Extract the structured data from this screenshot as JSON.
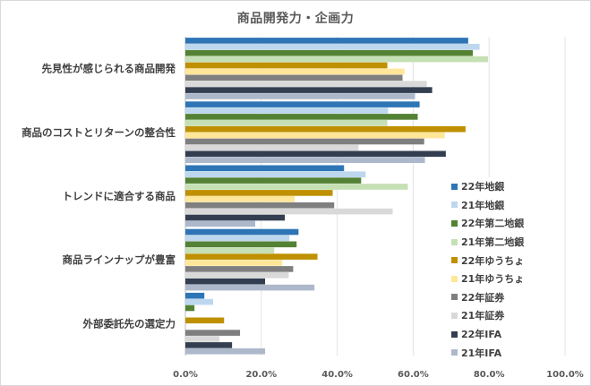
{
  "chart_data": {
    "type": "bar",
    "orientation": "horizontal",
    "title": "商品開発力・企画力",
    "xlabel": "",
    "ylabel": "",
    "xlim": [
      0,
      100
    ],
    "x_ticks": [
      "0.0%",
      "20.0%",
      "40.0%",
      "60.0%",
      "80.0%",
      "100.0%"
    ],
    "grid": true,
    "legend_position": "right",
    "categories": [
      "先見性が感じられる商品開発",
      "商品のコストとリターンの整合性",
      "トレンドに適合する商品",
      "商品ラインナップが豊富",
      "外部委託先の選定力"
    ],
    "series": [
      {
        "name": "22年地銀",
        "color": "#2e75b6",
        "values": [
          74.5,
          61.7,
          41.8,
          29.8,
          5.0
        ]
      },
      {
        "name": "21年地銀",
        "color": "#bdd7ee",
        "values": [
          77.5,
          53.4,
          47.5,
          27.4,
          7.3
        ]
      },
      {
        "name": "22年第二地銀",
        "color": "#548235",
        "values": [
          75.7,
          61.2,
          46.3,
          29.3,
          2.4
        ]
      },
      {
        "name": "21年第二地銀",
        "color": "#c5e0b4",
        "values": [
          79.7,
          53.2,
          58.6,
          23.4,
          0
        ]
      },
      {
        "name": "22年ゆうちょ",
        "color": "#bf9000",
        "values": [
          53.2,
          73.8,
          38.8,
          34.8,
          10.2
        ]
      },
      {
        "name": "21年ゆうちょ",
        "color": "#ffe699",
        "values": [
          57.7,
          68.3,
          28.8,
          25.5,
          0
        ]
      },
      {
        "name": "22年証券",
        "color": "#7f7f7f",
        "values": [
          57.2,
          62.9,
          39.2,
          28.4,
          14.4
        ]
      },
      {
        "name": "21年証券",
        "color": "#d9d9d9",
        "values": [
          63.6,
          45.6,
          54.6,
          27.2,
          9.0
        ]
      },
      {
        "name": "22年IFA",
        "color": "#333f50",
        "values": [
          65.0,
          68.6,
          26.2,
          21.0,
          12.3
        ]
      },
      {
        "name": "21年IFA",
        "color": "#adb9ca",
        "values": [
          60.5,
          63.1,
          18.4,
          34.0,
          21.0
        ]
      }
    ]
  }
}
